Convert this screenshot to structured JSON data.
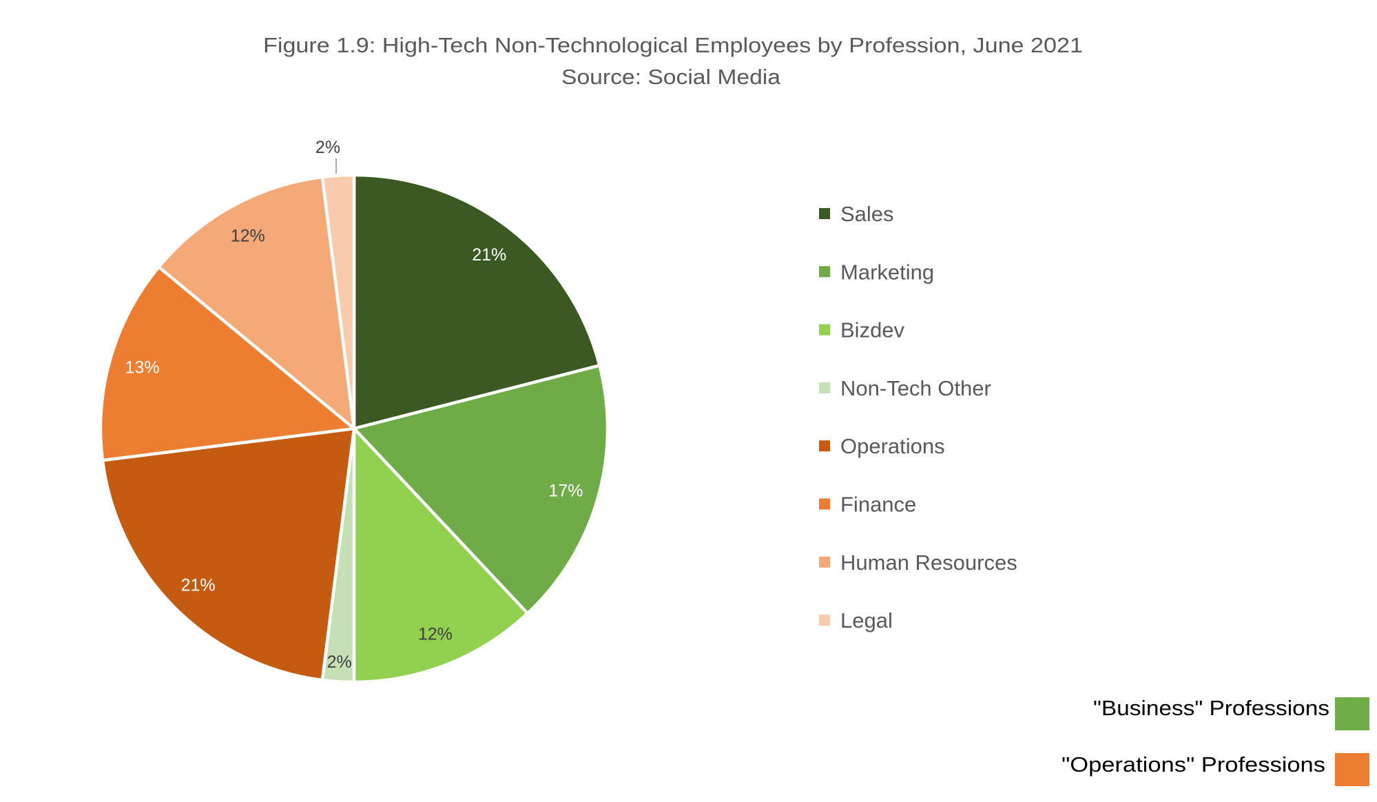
{
  "chart_data": {
    "type": "pie",
    "title": "Figure 1.9: High-Tech Non-Technological Employees by Profession, June 2021",
    "subtitle": "Source: Social Media",
    "legend_position": "right",
    "categories": [
      "Sales",
      "Marketing",
      "Bizdev",
      "Non-Tech Other",
      "Operations",
      "Finance",
      "Human Resources",
      "Legal"
    ],
    "values": [
      21,
      17,
      12,
      2,
      21,
      13,
      12,
      2
    ],
    "labels": [
      "21%",
      "17%",
      "12%",
      "2%",
      "21%",
      "13%",
      "12%",
      "2%"
    ],
    "colors": [
      "#3b5a23",
      "#6fab46",
      "#92d050",
      "#c5e0b4",
      "#c55a11",
      "#ed7d31",
      "#f4a976",
      "#f8cbad"
    ],
    "label_colors": [
      "#ffffff",
      "#ffffff",
      "#404040",
      "#404040",
      "#ffffff",
      "#ffffff",
      "#404040",
      "#404040"
    ],
    "unit": "%"
  },
  "annotations": [
    {
      "text": "\"Business\" Professions",
      "color": "#70ad47"
    },
    {
      "text": "\"Operations\" Professions",
      "color": "#ed7d31"
    }
  ]
}
